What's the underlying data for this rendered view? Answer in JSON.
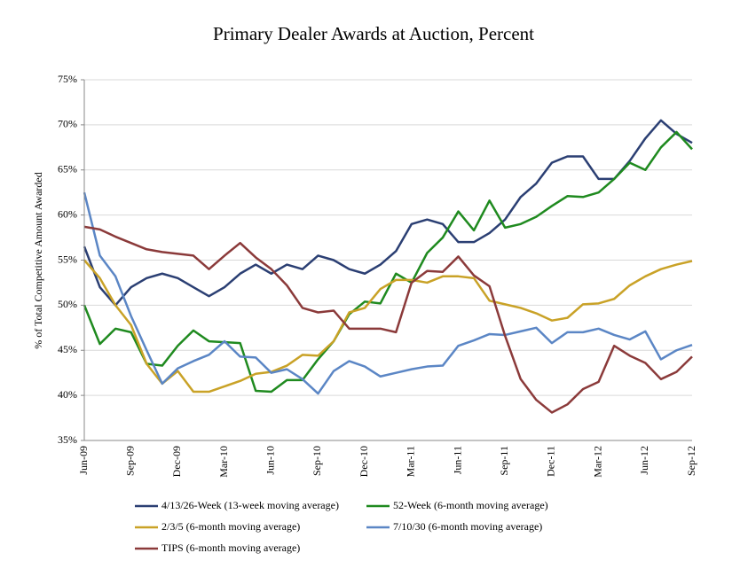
{
  "chart_data": {
    "type": "line",
    "title": "Primary Dealer Awards at Auction, Percent",
    "y_label": "% of Total Competitive Amount Awarded",
    "x": [
      "Jun-09",
      null,
      null,
      "Sep-09",
      null,
      null,
      "Dec-09",
      null,
      null,
      "Mar-10",
      null,
      null,
      "Jun-10",
      null,
      null,
      "Sep-10",
      null,
      null,
      "Dec-10",
      null,
      null,
      "Mar-11",
      null,
      null,
      "Jun-11",
      null,
      null,
      "Sep-11",
      null,
      null,
      "Dec-11",
      null,
      null,
      "Mar-12",
      null,
      null,
      "Jun-12",
      null,
      null,
      "Sep-12"
    ],
    "ylim": [
      35,
      75
    ],
    "yticks": [
      {
        "value": 35,
        "label": "35%"
      },
      {
        "value": 40,
        "label": "40%"
      },
      {
        "value": 45,
        "label": "45%"
      },
      {
        "value": 50,
        "label": "50%"
      },
      {
        "value": 55,
        "label": "55%"
      },
      {
        "value": 60,
        "label": "60%"
      },
      {
        "value": 65,
        "label": "65%"
      },
      {
        "value": 70,
        "label": "70%"
      },
      {
        "value": 75,
        "label": "75%"
      }
    ],
    "grid": true,
    "legend": "bottom",
    "series": [
      {
        "name": "4/13/26-Week (13-week moving average)",
        "color": "#2b3f73",
        "values": [
          56.5,
          52,
          50,
          52,
          53,
          53.5,
          53,
          52,
          51,
          52,
          53.5,
          54.5,
          53.5,
          54.5,
          54,
          55.5,
          55,
          54,
          53.5,
          54.5,
          56,
          59,
          59.5,
          59,
          57,
          57,
          58,
          59.5,
          62,
          63.5,
          65.8,
          66.5,
          66.5,
          64,
          64,
          66,
          68.5,
          70.5,
          69,
          68
        ]
      },
      {
        "name": "52-Week (6-month moving average)",
        "color": "#1f8a1f",
        "values": [
          50,
          45.7,
          47.4,
          47,
          43.5,
          43.3,
          45.5,
          47.2,
          46,
          45.9,
          45.8,
          40.5,
          40.4,
          41.7,
          41.7,
          44,
          46,
          49,
          50.4,
          50.2,
          53.5,
          52.5,
          55.8,
          57.5,
          60.4,
          58.3,
          61.6,
          58.6,
          59,
          59.8,
          61,
          62.1,
          62,
          62.5,
          64,
          65.8,
          65,
          67.5,
          69.2,
          67.3
        ]
      },
      {
        "name": "2/3/5 (6-month moving average)",
        "color": "#c9a227",
        "values": [
          55,
          53,
          50,
          47.8,
          43.5,
          41.3,
          42.7,
          40.4,
          40.4,
          41,
          41.6,
          42.4,
          42.6,
          43.3,
          44.5,
          44.4,
          46,
          49.2,
          49.7,
          51.8,
          52.8,
          52.8,
          52.5,
          53.2,
          53.2,
          53,
          50.5,
          50.1,
          49.7,
          49.1,
          48.3,
          48.6,
          50.1,
          50.2,
          50.7,
          52.2,
          53.2,
          54,
          54.5,
          54.9
        ]
      },
      {
        "name": "7/10/30 (6-month moving average)",
        "color": "#5b86c5",
        "values": [
          62.5,
          55.5,
          53.2,
          48.8,
          45,
          41.3,
          43,
          43.8,
          44.5,
          46,
          44.3,
          44.2,
          42.5,
          42.9,
          41.8,
          40.2,
          42.7,
          43.8,
          43.2,
          42.1,
          42.5,
          42.9,
          43.2,
          43.3,
          45.5,
          46.1,
          46.8,
          46.7,
          47.1,
          47.5,
          45.8,
          47,
          47,
          47.4,
          46.7,
          46.2,
          47.1,
          44,
          45,
          45.6
        ]
      },
      {
        "name": "TIPS (6-month moving average)",
        "color": "#8b3a3a",
        "values": [
          58.7,
          58.4,
          57.6,
          56.9,
          56.2,
          55.9,
          55.7,
          55.5,
          54,
          55.5,
          56.9,
          55.3,
          54,
          52.2,
          49.7,
          49.2,
          49.4,
          47.4,
          47.4,
          47.4,
          47,
          52.5,
          53.8,
          53.7,
          55.4,
          53.3,
          52.1,
          46.6,
          41.8,
          39.5,
          38.1,
          39,
          40.7,
          41.5,
          45.5,
          44.4,
          43.6,
          41.8,
          42.6,
          44.3
        ]
      }
    ]
  }
}
